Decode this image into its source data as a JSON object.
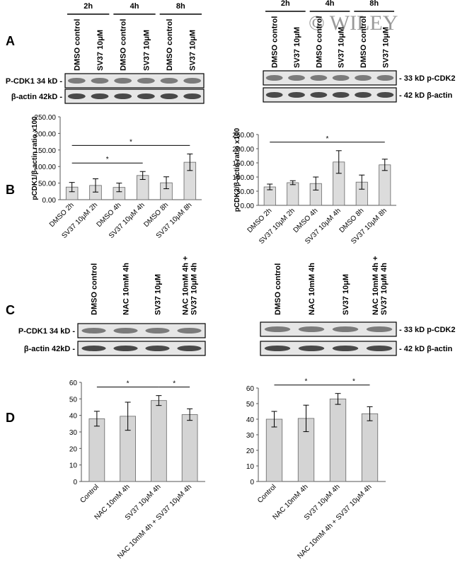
{
  "panel_labels": [
    "A",
    "B",
    "C",
    "D"
  ],
  "watermark": "© WILEY",
  "blots": [
    {
      "times": [
        "2h",
        "4h",
        "8h"
      ],
      "lanes": [
        "DMSO control",
        "SV37 10μM",
        "DMSO control",
        "SV37 10μM",
        "DMSO control",
        "SV37 10μM"
      ],
      "rows": [
        "P-CDK1 34 kD -",
        "β-actin 42kD -"
      ]
    },
    {
      "times": [
        "2h",
        "4h",
        "8h"
      ],
      "lanes": [
        "DMSO control",
        "SV37 10μM",
        "DMSO control",
        "SV37 10μM",
        "DMSO control",
        "SV37 10μM"
      ],
      "rows": [
        "- 33 kD p-CDK2",
        "- 42 kD β-actin"
      ]
    },
    {
      "lanes": [
        "DMSO control",
        "NAC 10mM 4h",
        "SV37 10μM",
        [
          "NAC 10mM 4h +",
          "SV37 10μM 4h"
        ]
      ],
      "rows": [
        "P-CDK1 34 kD -",
        "β-actin 42kD -"
      ]
    },
    {
      "lanes": [
        "DMSO control",
        "NAC 10mM 4h",
        "SV37 10μM",
        [
          "NAC 10mM 4h +",
          "SV37 10μM 4h"
        ]
      ],
      "rows": [
        "- 33 kD p-CDK2",
        "- 42 kD β-actin"
      ]
    }
  ],
  "chart_data": [
    {
      "type": "bar",
      "y_label": "pCDK1/β-actin ratio x100",
      "categories": [
        "DMSO 2h",
        "SV37 10μM 2h",
        "DMSO 4h",
        "SV37 10μM 4h",
        "DMSO 8h",
        "SV37 10μM 8h"
      ],
      "values": [
        38,
        43,
        37,
        73,
        51,
        113
      ],
      "errors": [
        14,
        20,
        13,
        12,
        18,
        25
      ],
      "color": "#dcdcdc",
      "ylim": [
        0,
        250
      ],
      "yticks": [
        {
          "value": 0,
          "label": "0.00"
        },
        {
          "value": 50,
          "label": "50.00"
        },
        {
          "value": 100,
          "label": "100.00"
        },
        {
          "value": 150,
          "label": "150.00"
        },
        {
          "value": 200,
          "label": "200.00"
        },
        {
          "value": 250,
          "label": "250.00"
        }
      ],
      "significance": [
        {
          "label": "*",
          "between": [
            "DMSO 2h",
            "SV37 10μM 4h"
          ]
        },
        {
          "label": "*",
          "between": [
            "DMSO 2h",
            "SV37 10μM 8h"
          ]
        }
      ]
    },
    {
      "type": "bar",
      "y_label": "pCDK2/β-actin ratio x100",
      "categories": [
        "DMSO 2h",
        "SV37 10μM 2h",
        "DMSO 4h",
        "SV37 10μM 4h",
        "DMSO 8h",
        "SV37 10μM 8h"
      ],
      "values": [
        65,
        80,
        77,
        153,
        82,
        143
      ],
      "errors": [
        10,
        7,
        23,
        40,
        25,
        20
      ],
      "color": "#dcdcdc",
      "ylim": [
        0,
        250
      ],
      "yticks": [
        {
          "value": 0,
          "label": "0.00"
        },
        {
          "value": 50,
          "label": "50.00"
        },
        {
          "value": 100,
          "label": "100.00"
        },
        {
          "value": 150,
          "label": "150.00"
        },
        {
          "value": 200,
          "label": "200.00"
        },
        {
          "value": 250,
          "label": "250.00"
        }
      ],
      "significance": [
        {
          "label": "*",
          "between": [
            "DMSO 2h",
            "SV37 10μM 8h"
          ]
        }
      ]
    },
    {
      "type": "bar",
      "categories": [
        "Control",
        "NAC 10mM 4h",
        "SV37 10μM 4h",
        "NAC 10mM 4h + SV37 10μM 4h"
      ],
      "values": [
        38,
        39.5,
        49,
        40.5
      ],
      "errors": [
        4.5,
        8.5,
        3,
        3.5
      ],
      "color": "#d4d4d4",
      "ylim": [
        0,
        60
      ],
      "yticks": [
        0,
        10,
        20,
        30,
        40,
        50,
        60
      ],
      "significance": [
        {
          "label": "*",
          "between": [
            "Control",
            "SV37 10μM 4h"
          ]
        },
        {
          "label": "*",
          "between": [
            "SV37 10μM 4h",
            "NAC 10mM 4h + SV37 10μM 4h"
          ]
        }
      ]
    },
    {
      "type": "bar",
      "categories": [
        "Control",
        "NAC 10mM 4h",
        "SV37 10μM 4h",
        "NAC 10mM 4h + SV37 10μM 4h"
      ],
      "values": [
        40,
        40.5,
        53,
        43.5
      ],
      "errors": [
        5,
        8.5,
        3.5,
        4.5
      ],
      "color": "#d4d4d4",
      "ylim": [
        0,
        60
      ],
      "yticks": [
        0,
        10,
        20,
        30,
        40,
        50,
        60
      ],
      "significance": [
        {
          "label": "*",
          "between": [
            "Control",
            "SV37 10μM 4h"
          ]
        },
        {
          "label": "*",
          "between": [
            "SV37 10μM 4h",
            "NAC 10mM 4h + SV37 10μM 4h"
          ]
        }
      ]
    }
  ]
}
